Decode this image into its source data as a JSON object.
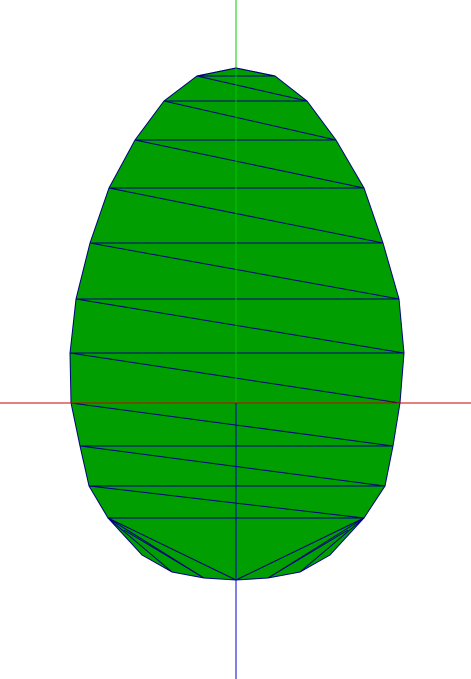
{
  "scene": {
    "background_color": "#ffffff",
    "egg_fill_color": "#009e00",
    "edge_color": "#000080",
    "axes": {
      "x_axis_color": "#cc0000",
      "y_axis_positive_color": "#00cc00",
      "z_axis_color": "#0000cc"
    }
  }
}
